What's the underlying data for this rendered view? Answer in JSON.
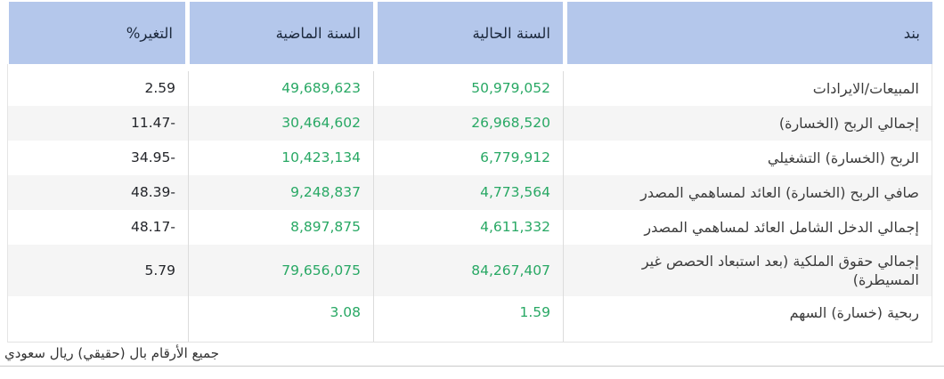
{
  "table": {
    "columns": [
      {
        "key": "item",
        "label": "بند"
      },
      {
        "key": "current",
        "label": "السنة الحالية"
      },
      {
        "key": "previous",
        "label": "السنة الماضية"
      },
      {
        "key": "change",
        "label": "التغير%"
      }
    ],
    "rows": [
      {
        "item": "المبيعات/الايرادات",
        "current": "50,979,052",
        "previous": "49,689,623",
        "change": "2.59"
      },
      {
        "item": "إجمالي الربح (الخسارة)",
        "current": "26,968,520",
        "previous": "30,464,602",
        "change": "-11.47"
      },
      {
        "item": "الربح (الخسارة) التشغيلي",
        "current": "6,779,912",
        "previous": "10,423,134",
        "change": "-34.95"
      },
      {
        "item": "صافي الربح (الخسارة) العائد لمساهمي المصدر",
        "current": "4,773,564",
        "previous": "9,248,837",
        "change": "-48.39"
      },
      {
        "item": "إجمالي الدخل الشامل العائد لمساهمي المصدر",
        "current": "4,611,332",
        "previous": "8,897,875",
        "change": "-48.17"
      },
      {
        "item": "إجمالي حقوق الملكية (بعد استبعاد الحصص غير المسيطرة)",
        "current": "84,267,407",
        "previous": "79,656,075",
        "change": "5.79"
      },
      {
        "item": "ربحية (خسارة) السهم",
        "current": "1.59",
        "previous": "3.08",
        "change": ""
      }
    ],
    "footnote": "جميع الأرقام بال (حقيقي) ريال سعودي"
  },
  "colors": {
    "header_background": "#b4c7eb",
    "header_text": "#1d2a3e",
    "value_green": "#28a864",
    "row_stripe": "#f5f5f5",
    "label_text": "#3c3c3c",
    "change_text": "#24262b",
    "divider": "#dcdcdc"
  }
}
